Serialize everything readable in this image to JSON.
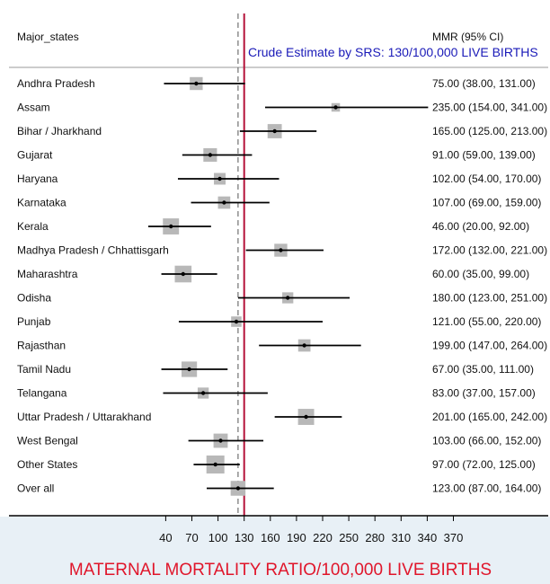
{
  "chart_data": {
    "type": "forest",
    "title": "",
    "xlabel": "MATERNAL MORTALITY RATIO/100,000  LIVE BIRTHS",
    "ylabel": "",
    "header_left": "Major_states",
    "header_right": "MMR (95% CI)",
    "reference_note": "Crude Estimate by SRS: 130/100,000 LIVE BIRTHS",
    "reference_value": 130,
    "overall_value": 123,
    "xlim": [
      0,
      400
    ],
    "xticks": [
      40,
      70,
      100,
      130,
      160,
      190,
      220,
      250,
      280,
      310,
      340,
      370
    ],
    "rows": [
      {
        "label": "Andhra Pradesh",
        "estimate": 75,
        "lower": 38,
        "upper": 131,
        "text": "75.00 (38.00, 131.00)"
      },
      {
        "label": "Assam",
        "estimate": 235,
        "lower": 154,
        "upper": 341,
        "text": "235.00 (154.00, 341.00)"
      },
      {
        "label": "Bihar / Jharkhand",
        "estimate": 165,
        "lower": 125,
        "upper": 213,
        "text": "165.00 (125.00, 213.00)"
      },
      {
        "label": "Gujarat",
        "estimate": 91,
        "lower": 59,
        "upper": 139,
        "text": "91.00 (59.00, 139.00)"
      },
      {
        "label": "Haryana",
        "estimate": 102,
        "lower": 54,
        "upper": 170,
        "text": "102.00 (54.00, 170.00)"
      },
      {
        "label": "Karnataka",
        "estimate": 107,
        "lower": 69,
        "upper": 159,
        "text": "107.00 (69.00, 159.00)"
      },
      {
        "label": "Kerala",
        "estimate": 46,
        "lower": 20,
        "upper": 92,
        "text": "46.00 (20.00, 92.00)"
      },
      {
        "label": "Madhya Pradesh / Chhattisgarh",
        "estimate": 172,
        "lower": 132,
        "upper": 221,
        "text": "172.00 (132.00, 221.00)"
      },
      {
        "label": "Maharashtra",
        "estimate": 60,
        "lower": 35,
        "upper": 99,
        "text": "60.00 (35.00, 99.00)"
      },
      {
        "label": "Odisha",
        "estimate": 180,
        "lower": 123,
        "upper": 251,
        "text": "180.00 (123.00, 251.00)"
      },
      {
        "label": "Punjab",
        "estimate": 121,
        "lower": 55,
        "upper": 220,
        "text": "121.00 (55.00, 220.00)"
      },
      {
        "label": "Rajasthan",
        "estimate": 199,
        "lower": 147,
        "upper": 264,
        "text": "199.00 (147.00, 264.00)"
      },
      {
        "label": "Tamil Nadu",
        "estimate": 67,
        "lower": 35,
        "upper": 111,
        "text": "67.00 (35.00, 111.00)"
      },
      {
        "label": "Telangana",
        "estimate": 83,
        "lower": 37,
        "upper": 157,
        "text": "83.00 (37.00, 157.00)"
      },
      {
        "label": "Uttar Pradesh / Uttarakhand",
        "estimate": 201,
        "lower": 165,
        "upper": 242,
        "text": "201.00 (165.00, 242.00)"
      },
      {
        "label": "West Bengal",
        "estimate": 103,
        "lower": 66,
        "upper": 152,
        "text": "103.00 (66.00, 152.00)"
      },
      {
        "label": "Other States",
        "estimate": 97,
        "lower": 72,
        "upper": 125,
        "text": "97.00 (72.00, 125.00)"
      },
      {
        "label": "Over all",
        "estimate": 123,
        "lower": 87,
        "upper": 164,
        "text": "123.00 (87.00, 164.00)"
      }
    ],
    "marker_weights": [
      0.6,
      0.25,
      0.7,
      0.65,
      0.5,
      0.55,
      0.85,
      0.6,
      0.9,
      0.45,
      0.4,
      0.55,
      0.8,
      0.45,
      0.85,
      0.7,
      1.0,
      0.75
    ],
    "colors": {
      "reference_line": "#b5123a",
      "overall_line": "#555555",
      "marker": "#b8b8b8",
      "ci_line": "#000000",
      "axis_title": "#e0162b",
      "note": "#1a1ab8",
      "panel_bg": "#e8f0f6"
    },
    "grid": false
  }
}
